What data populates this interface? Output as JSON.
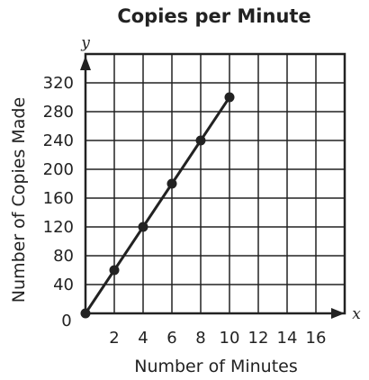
{
  "chart_data": {
    "type": "line",
    "title": "Copies per Minute",
    "xlabel": "Number of Minutes",
    "ylabel": "Number of Copies Made",
    "x_var": "x",
    "y_var": "y",
    "origin_label": "0",
    "x": [
      0,
      2,
      4,
      6,
      8,
      10
    ],
    "values": [
      0,
      60,
      120,
      180,
      240,
      300
    ],
    "xlim": [
      0,
      18
    ],
    "ylim": [
      0,
      360
    ],
    "x_ticks": [
      "2",
      "4",
      "6",
      "8",
      "10",
      "12",
      "14",
      "16"
    ],
    "y_ticks": [
      "40",
      "80",
      "120",
      "160",
      "200",
      "240",
      "280",
      "320"
    ],
    "grid": true,
    "color": "#222222"
  }
}
